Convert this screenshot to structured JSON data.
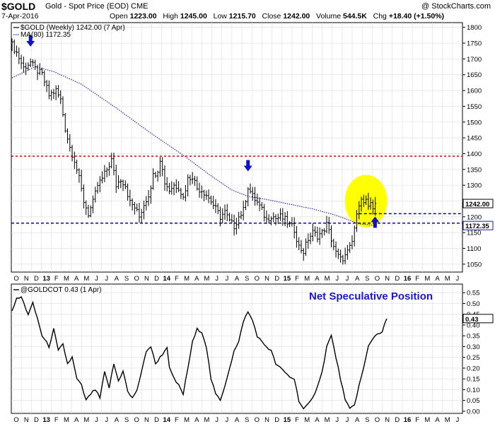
{
  "header": {
    "ticker": "$GOLD",
    "subtitle": "Gold - Spot Price (EOD)  CME",
    "credit": "@ StockCharts.com",
    "date": "7-Apr-2016",
    "ohlc": {
      "open_label": "Open",
      "open": "1223.00",
      "high_label": "High",
      "high": "1245.00",
      "low_label": "Low",
      "low": "1215.70",
      "close_label": "Close",
      "close": "1242.00",
      "volume_label": "Volume",
      "volume": "544.5K",
      "chg_label": "Chg",
      "chg": "+18.40 (+1.50%)"
    }
  },
  "colors": {
    "price": "#000000",
    "ma": "#1a1aa6",
    "resistance": "#e00000",
    "support": "#0a0a9c",
    "arrow": "#1010d0",
    "highlight": "#ffff00",
    "annotation": "#1a1ac8",
    "grid": "#dcdcdc"
  },
  "chart_data": [
    {
      "type": "ohlc",
      "legend": [
        {
          "name": "$GOLD (Weekly) 1242.00 (7 Apr)",
          "style": "solid-black"
        },
        {
          "name": "MA(80) 1172.35",
          "style": "dotted-blue"
        }
      ],
      "y_ticks": [
        1050,
        1100,
        1150,
        1200,
        1250,
        1300,
        1350,
        1400,
        1450,
        1500,
        1550,
        1600,
        1650,
        1700,
        1750,
        1800
      ],
      "ylim": [
        1025,
        1815
      ],
      "price_tag": "1242.00",
      "ma_tag": "1172.35",
      "resistance_level": 1392,
      "support_level": 1180,
      "recent_support_level": 1210,
      "price_anchors": [
        [
          0,
          1745
        ],
        [
          2,
          1720
        ],
        [
          5,
          1672
        ],
        [
          8,
          1690
        ],
        [
          10,
          1668
        ],
        [
          13,
          1650
        ],
        [
          16,
          1585
        ],
        [
          19,
          1600
        ],
        [
          21,
          1570
        ],
        [
          23,
          1480
        ],
        [
          25,
          1420
        ],
        [
          27,
          1380
        ],
        [
          29,
          1320
        ],
        [
          31,
          1250
        ],
        [
          33,
          1210
        ],
        [
          35,
          1245
        ],
        [
          37,
          1300
        ],
        [
          39,
          1320
        ],
        [
          41,
          1350
        ],
        [
          43,
          1380
        ],
        [
          45,
          1300
        ],
        [
          47,
          1320
        ],
        [
          49,
          1300
        ],
        [
          51,
          1245
        ],
        [
          53,
          1230
        ],
        [
          55,
          1200
        ],
        [
          57,
          1240
        ],
        [
          59,
          1270
        ],
        [
          61,
          1330
        ],
        [
          63,
          1350
        ],
        [
          64,
          1385
        ],
        [
          66,
          1310
        ],
        [
          68,
          1285
        ],
        [
          70,
          1300
        ],
        [
          72,
          1295
        ],
        [
          74,
          1260
        ],
        [
          76,
          1320
        ],
        [
          78,
          1330
        ],
        [
          80,
          1290
        ],
        [
          82,
          1285
        ],
        [
          84,
          1270
        ],
        [
          86,
          1250
        ],
        [
          88,
          1225
        ],
        [
          90,
          1200
        ],
        [
          92,
          1215
        ],
        [
          94,
          1185
        ],
        [
          96,
          1170
        ],
        [
          98,
          1200
        ],
        [
          100,
          1220
        ],
        [
          102,
          1295
        ],
        [
          104,
          1265
        ],
        [
          106,
          1245
        ],
        [
          108,
          1220
        ],
        [
          110,
          1190
        ],
        [
          112,
          1205
        ],
        [
          114,
          1195
        ],
        [
          116,
          1200
        ],
        [
          118,
          1190
        ],
        [
          120,
          1175
        ],
        [
          122,
          1160
        ],
        [
          124,
          1105
        ],
        [
          126,
          1090
        ],
        [
          128,
          1130
        ],
        [
          130,
          1150
        ],
        [
          132,
          1140
        ],
        [
          134,
          1150
        ],
        [
          136,
          1175
        ],
        [
          138,
          1130
        ],
        [
          140,
          1085
        ],
        [
          142,
          1065
        ],
        [
          144,
          1075
        ],
        [
          146,
          1100
        ],
        [
          147,
          1120
        ],
        [
          148,
          1165
        ],
        [
          149,
          1200
        ],
        [
          150,
          1245
        ],
        [
          151,
          1265
        ],
        [
          152,
          1240
        ],
        [
          153,
          1255
        ],
        [
          154,
          1225
        ],
        [
          155,
          1235
        ],
        [
          156,
          1225
        ],
        [
          157,
          1242
        ]
      ],
      "ma_anchors": [
        [
          0,
          1640
        ],
        [
          10,
          1675
        ],
        [
          18,
          1660
        ],
        [
          30,
          1620
        ],
        [
          45,
          1545
        ],
        [
          60,
          1465
        ],
        [
          75,
          1390
        ],
        [
          85,
          1335
        ],
        [
          95,
          1285
        ],
        [
          102,
          1265
        ],
        [
          110,
          1255
        ],
        [
          120,
          1240
        ],
        [
          130,
          1225
        ],
        [
          140,
          1205
        ],
        [
          150,
          1178
        ],
        [
          157,
          1172.35
        ]
      ],
      "down_arrow_weeks": [
        8,
        102
      ],
      "up_arrow_week": 156,
      "highlight_center": {
        "week": 153,
        "price": 1250
      }
    },
    {
      "type": "line",
      "legend": [
        {
          "name": "@GOLDCOT 0.43 (1 Apr)",
          "style": "solid-black"
        }
      ],
      "annotation": "Net Speculative Position",
      "y_ticks": [
        "0.00",
        "0.05",
        "0.10",
        "0.15",
        "0.20",
        "0.25",
        "0.30",
        "0.35",
        "0.40",
        "0.45",
        "0.50",
        "0.55"
      ],
      "ylim": [
        -0.01,
        0.59
      ],
      "last_value_tag": "0.43",
      "anchors": [
        [
          0,
          0.47
        ],
        [
          2,
          0.52
        ],
        [
          4,
          0.53
        ],
        [
          7,
          0.45
        ],
        [
          9,
          0.5
        ],
        [
          11,
          0.43
        ],
        [
          13,
          0.35
        ],
        [
          16,
          0.3
        ],
        [
          18,
          0.38
        ],
        [
          20,
          0.28
        ],
        [
          22,
          0.31
        ],
        [
          24,
          0.22
        ],
        [
          26,
          0.25
        ],
        [
          28,
          0.15
        ],
        [
          30,
          0.12
        ],
        [
          32,
          0.05
        ],
        [
          34,
          0.08
        ],
        [
          36,
          0.1
        ],
        [
          38,
          0.06
        ],
        [
          40,
          0.18
        ],
        [
          42,
          0.11
        ],
        [
          44,
          0.22
        ],
        [
          46,
          0.14
        ],
        [
          48,
          0.19
        ],
        [
          50,
          0.09
        ],
        [
          52,
          0.06
        ],
        [
          54,
          0.1
        ],
        [
          56,
          0.18
        ],
        [
          58,
          0.28
        ],
        [
          60,
          0.3
        ],
        [
          62,
          0.22
        ],
        [
          64,
          0.25
        ],
        [
          66,
          0.28
        ],
        [
          67,
          0.3
        ],
        [
          68,
          0.2
        ],
        [
          70,
          0.15
        ],
        [
          72,
          0.12
        ],
        [
          74,
          0.08
        ],
        [
          76,
          0.2
        ],
        [
          78,
          0.32
        ],
        [
          80,
          0.38
        ],
        [
          82,
          0.37
        ],
        [
          84,
          0.3
        ],
        [
          86,
          0.15
        ],
        [
          88,
          0.08
        ],
        [
          90,
          0.05
        ],
        [
          92,
          0.12
        ],
        [
          94,
          0.2
        ],
        [
          96,
          0.28
        ],
        [
          98,
          0.32
        ],
        [
          100,
          0.42
        ],
        [
          102,
          0.46
        ],
        [
          104,
          0.42
        ],
        [
          106,
          0.35
        ],
        [
          108,
          0.32
        ],
        [
          110,
          0.3
        ],
        [
          112,
          0.28
        ],
        [
          114,
          0.22
        ],
        [
          116,
          0.2
        ],
        [
          118,
          0.18
        ],
        [
          120,
          0.16
        ],
        [
          122,
          0.15
        ],
        [
          124,
          0.05
        ],
        [
          126,
          0.01
        ],
        [
          128,
          0.03
        ],
        [
          130,
          0.06
        ],
        [
          132,
          0.12
        ],
        [
          134,
          0.18
        ],
        [
          136,
          0.3
        ],
        [
          138,
          0.35
        ],
        [
          140,
          0.25
        ],
        [
          142,
          0.15
        ],
        [
          144,
          0.05
        ],
        [
          146,
          0.01
        ],
        [
          148,
          0.03
        ],
        [
          150,
          0.12
        ],
        [
          152,
          0.2
        ],
        [
          154,
          0.3
        ],
        [
          156,
          0.34
        ],
        [
          158,
          0.36
        ],
        [
          160,
          0.37
        ],
        [
          162,
          0.43
        ]
      ]
    }
  ],
  "x_axis": {
    "month_labels": [
      {
        "t": "O"
      },
      {
        "t": "N"
      },
      {
        "t": "D"
      },
      {
        "t": "13",
        "year": true
      },
      {
        "t": "F"
      },
      {
        "t": "M"
      },
      {
        "t": "A"
      },
      {
        "t": "M"
      },
      {
        "t": "J"
      },
      {
        "t": "J"
      },
      {
        "t": "A"
      },
      {
        "t": "S"
      },
      {
        "t": "O"
      },
      {
        "t": "N"
      },
      {
        "t": "D"
      },
      {
        "t": "14",
        "year": true
      },
      {
        "t": "F"
      },
      {
        "t": "M"
      },
      {
        "t": "A"
      },
      {
        "t": "M"
      },
      {
        "t": "J"
      },
      {
        "t": "J"
      },
      {
        "t": "A"
      },
      {
        "t": "S"
      },
      {
        "t": "O"
      },
      {
        "t": "N"
      },
      {
        "t": "D"
      },
      {
        "t": "15",
        "year": true
      },
      {
        "t": "F"
      },
      {
        "t": "M"
      },
      {
        "t": "A"
      },
      {
        "t": "M"
      },
      {
        "t": "J"
      },
      {
        "t": "J"
      },
      {
        "t": "A"
      },
      {
        "t": "S"
      },
      {
        "t": "O"
      },
      {
        "t": "N"
      },
      {
        "t": "D"
      },
      {
        "t": "16",
        "year": true
      },
      {
        "t": "F"
      },
      {
        "t": "M"
      },
      {
        "t": "A"
      },
      {
        "t": "M"
      },
      {
        "t": "J"
      }
    ]
  }
}
